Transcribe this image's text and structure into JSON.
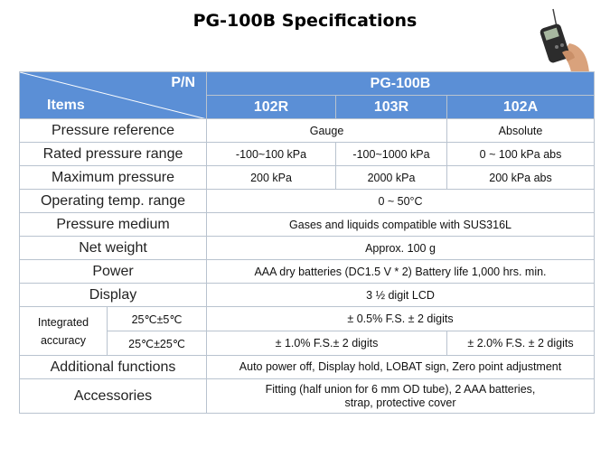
{
  "title": "PG-100B Specifications",
  "colors": {
    "header_bg": "#5b8fd6",
    "header_text": "#ffffff",
    "border": "#b9c3cf"
  },
  "icons": {
    "product_image": "handheld-pressure-gauge-in-hand"
  },
  "table": {
    "corner_top": "P/N",
    "corner_bottom": "Items",
    "model": "PG-100B",
    "variants": [
      "102R",
      "103R",
      "102A"
    ],
    "rows": {
      "pressure_reference": {
        "label": "Pressure reference",
        "gauge": "Gauge",
        "absolute": "Absolute"
      },
      "rated_range": {
        "label": "Rated pressure range",
        "v1": "-100~100 kPa",
        "v2": "-100~1000 kPa",
        "v3": "0 ~ 100 kPa abs"
      },
      "max_pressure": {
        "label": "Maximum pressure",
        "v1": "200 kPa",
        "v2": "2000 kPa",
        "v3": "200 kPa abs"
      },
      "temp_range": {
        "label": "Operating temp. range",
        "value": "0 ~ 50°C"
      },
      "medium": {
        "label": "Pressure medium",
        "value": "Gases and liquids compatible with SUS316L"
      },
      "weight": {
        "label": "Net weight",
        "value": "Approx. 100 g"
      },
      "power": {
        "label": "Power",
        "value": "AAA dry batteries (DC1.5 V * 2)  Battery life 1,000 hrs. min."
      },
      "display": {
        "label": "Display",
        "value": "3 ½ digit LCD"
      },
      "accuracy": {
        "label_line1": "Integrated",
        "label_line2": "accuracy",
        "cond1": "25℃±5℃",
        "cond1_value": "± 0.5% F.S.  ± 2 digits",
        "cond2": "25℃±25℃",
        "cond2_value_a": "± 1.0% F.S.± 2 digits",
        "cond2_value_b": "± 2.0% F.S.  ± 2 digits"
      },
      "additional": {
        "label": "Additional functions",
        "value": "Auto power off, Display hold, LOBAT sign, Zero point adjustment"
      },
      "accessories": {
        "label": "Accessories",
        "value_line1": "Fitting (half union for 6 mm OD tube), 2 AAA  batteries,",
        "value_line2": "strap, protective cover"
      }
    }
  }
}
